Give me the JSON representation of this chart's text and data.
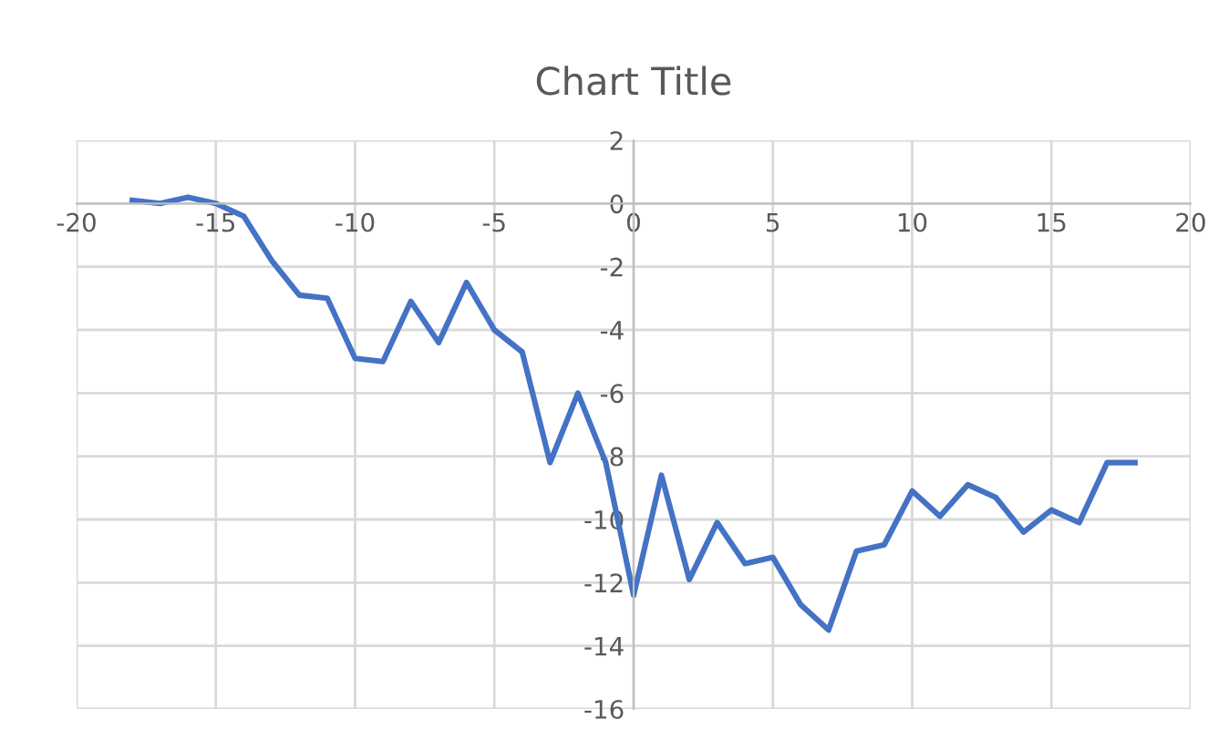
{
  "chart_data": {
    "type": "line",
    "title": "Chart Title",
    "x": [
      -18,
      -17,
      -16,
      -15,
      -14,
      -13,
      -12,
      -11,
      -10,
      -9,
      -8,
      -7,
      -6,
      -5,
      -4,
      -3,
      -2,
      -1,
      0,
      1,
      2,
      3,
      4,
      5,
      6,
      7,
      8,
      9,
      10,
      11,
      12,
      13,
      14,
      15,
      16,
      17,
      18
    ],
    "series": [
      {
        "color": "#4472c4",
        "values": [
          0.1,
          0,
          0.2,
          0,
          -0.4,
          -1.8,
          -2.9,
          -3.0,
          -4.9,
          -5.0,
          -3.1,
          -4.4,
          -2.5,
          -4.0,
          -4.7,
          -8.2,
          -6.0,
          -8.2,
          -12.4,
          -8.6,
          -11.9,
          -10.1,
          -11.4,
          -11.2,
          -12.7,
          -13.5,
          -11.0,
          -10.8,
          -9.1,
          -9.9,
          -8.9,
          -9.3,
          -10.4,
          -9.7,
          -10.1,
          -8.2,
          -8.2
        ]
      }
    ],
    "xlim": [
      -20,
      20
    ],
    "xticks": [
      -20,
      -15,
      -10,
      -5,
      0,
      5,
      10,
      15,
      20
    ],
    "ylim": [
      -16,
      2
    ],
    "yticks": [
      -16,
      -14,
      -12,
      -10,
      -8,
      -6,
      -4,
      -2,
      0,
      2
    ],
    "grid": true,
    "marker": "none",
    "line_style": "solid",
    "legend": false
  }
}
